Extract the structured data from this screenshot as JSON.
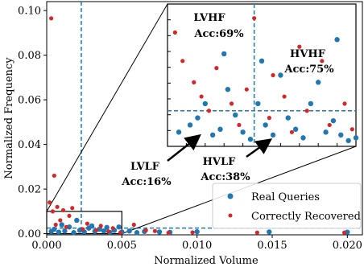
{
  "chart_data": {
    "type": "scatter",
    "xlabel": "Normalized Volume",
    "ylabel": "Normalized Frequency",
    "xlim": [
      0.0,
      0.021
    ],
    "ylim": [
      -0.0005,
      0.104
    ],
    "x_ticks": [
      0.0,
      0.005,
      0.01,
      0.015,
      0.02
    ],
    "x_tick_labels": [
      "0.000",
      "0.005",
      "0.010",
      "0.015",
      "0.020"
    ],
    "y_ticks": [
      0.0,
      0.02,
      0.04,
      0.06,
      0.08,
      0.1
    ],
    "y_tick_labels": [
      "0.00",
      "0.02",
      "0.04",
      "0.06",
      "0.08",
      "0.10"
    ],
    "threshold_x": 0.0023,
    "threshold_y": 0.0025,
    "legend": {
      "position": "lower-right",
      "entries": [
        "Real Queries",
        "Correctly Recovered"
      ]
    },
    "series": [
      {
        "name": "Real Queries",
        "color": "#1f77b4",
        "points": [
          [
            0.0003,
            0.001
          ],
          [
            0.0005,
            0.002
          ],
          [
            0.0008,
            0.0007
          ],
          [
            0.001,
            0.004
          ],
          [
            0.0012,
            0.0012
          ],
          [
            0.0015,
            0.003
          ],
          [
            0.0018,
            0.0005
          ],
          [
            0.002,
            0.006
          ],
          [
            0.0022,
            0.0015
          ],
          [
            0.0025,
            0.0008
          ],
          [
            0.0028,
            0.0025
          ],
          [
            0.003,
            0.0035
          ],
          [
            0.0032,
            0.001
          ],
          [
            0.0035,
            0.002
          ],
          [
            0.0038,
            0.0012
          ],
          [
            0.004,
            0.0028
          ],
          [
            0.0042,
            0.0006
          ],
          [
            0.0045,
            0.0015
          ],
          [
            0.0048,
            0.003
          ],
          [
            0.005,
            0.0008
          ],
          [
            0.0055,
            0.0012
          ],
          [
            0.006,
            0.0005
          ],
          [
            0.0065,
            0.001
          ],
          [
            0.0075,
            0.0008
          ],
          [
            0.0082,
            0.0006
          ],
          [
            0.01,
            0.0009
          ],
          [
            0.0148,
            0.0008
          ],
          [
            0.02,
            0.0007
          ]
        ]
      },
      {
        "name": "Correctly Recovered",
        "color": "#d62728",
        "points": [
          [
            0.0003,
            0.0965
          ],
          [
            0.0005,
            0.026
          ],
          [
            0.0002,
            0.014
          ],
          [
            0.0004,
            0.01
          ],
          [
            0.0007,
            0.012
          ],
          [
            0.0011,
            0.0105
          ],
          [
            0.0015,
            0.008
          ],
          [
            0.0017,
            0.0115
          ],
          [
            0.0009,
            0.006
          ],
          [
            0.0006,
            0.004
          ],
          [
            0.0013,
            0.003
          ],
          [
            0.0024,
            0.002
          ],
          [
            0.0027,
            0.0045
          ],
          [
            0.0033,
            0.0015
          ],
          [
            0.0036,
            0.0035
          ],
          [
            0.0041,
            0.001
          ],
          [
            0.0044,
            0.0025
          ],
          [
            0.0049,
            0.0005
          ],
          [
            0.0058,
            0.004
          ],
          [
            0.0066,
            0.0015
          ],
          [
            0.0072,
            0.0012
          ],
          [
            0.0081,
            0.0004
          ],
          [
            0.0097,
            0.0006
          ],
          [
            0.014,
            0.0005
          ],
          [
            0.0198,
            0.0005
          ]
        ]
      }
    ],
    "inset": {
      "xlim": [
        0.0,
        0.005
      ],
      "ylim": [
        0.0,
        0.01
      ],
      "threshold_x": 0.0023,
      "threshold_y": 0.0025,
      "blue_points": [
        [
          0.0003,
          0.001
        ],
        [
          0.0006,
          0.0015
        ],
        [
          0.0008,
          0.002
        ],
        [
          0.001,
          0.003
        ],
        [
          0.0012,
          0.0008
        ],
        [
          0.0014,
          0.0012
        ],
        [
          0.0016,
          0.004
        ],
        [
          0.0018,
          0.0022
        ],
        [
          0.002,
          0.001
        ],
        [
          0.0022,
          0.0005
        ],
        [
          0.0024,
          0.003
        ],
        [
          0.0026,
          0.0015
        ],
        [
          0.0028,
          0.0008
        ],
        [
          0.003,
          0.005
        ],
        [
          0.0032,
          0.002
        ],
        [
          0.0034,
          0.0012
        ],
        [
          0.0036,
          0.0006
        ],
        [
          0.0038,
          0.003
        ],
        [
          0.004,
          0.0045
        ],
        [
          0.0042,
          0.001
        ],
        [
          0.0044,
          0.0018
        ],
        [
          0.0046,
          0.0008
        ],
        [
          0.0048,
          0.0004
        ],
        [
          0.005,
          0.0006
        ],
        [
          0.0025,
          0.006
        ],
        [
          0.0015,
          0.0065
        ],
        [
          0.0045,
          0.0075
        ]
      ],
      "red_points": [
        [
          0.0002,
          0.008
        ],
        [
          0.0004,
          0.006
        ],
        [
          0.0007,
          0.0045
        ],
        [
          0.0009,
          0.0035
        ],
        [
          0.0011,
          0.0025
        ],
        [
          0.0013,
          0.0055
        ],
        [
          0.0017,
          0.003
        ],
        [
          0.0019,
          0.0015
        ],
        [
          0.0021,
          0.004
        ],
        [
          0.0023,
          0.009
        ],
        [
          0.0027,
          0.002
        ],
        [
          0.0031,
          0.0035
        ],
        [
          0.0033,
          0.001
        ],
        [
          0.0037,
          0.0025
        ],
        [
          0.0041,
          0.006
        ],
        [
          0.0043,
          0.0015
        ],
        [
          0.0047,
          0.003
        ],
        [
          0.0049,
          0.0012
        ],
        [
          0.0035,
          0.007
        ],
        [
          0.0028,
          0.005
        ]
      ]
    },
    "annotations": [
      {
        "label": "LVHF",
        "acc": "Acc:69%"
      },
      {
        "label": "HVHF",
        "acc": "Acc:75%"
      },
      {
        "label": "LVLF",
        "acc": "Acc:16%"
      },
      {
        "label": "HVLF",
        "acc": "Acc:38%"
      }
    ]
  }
}
